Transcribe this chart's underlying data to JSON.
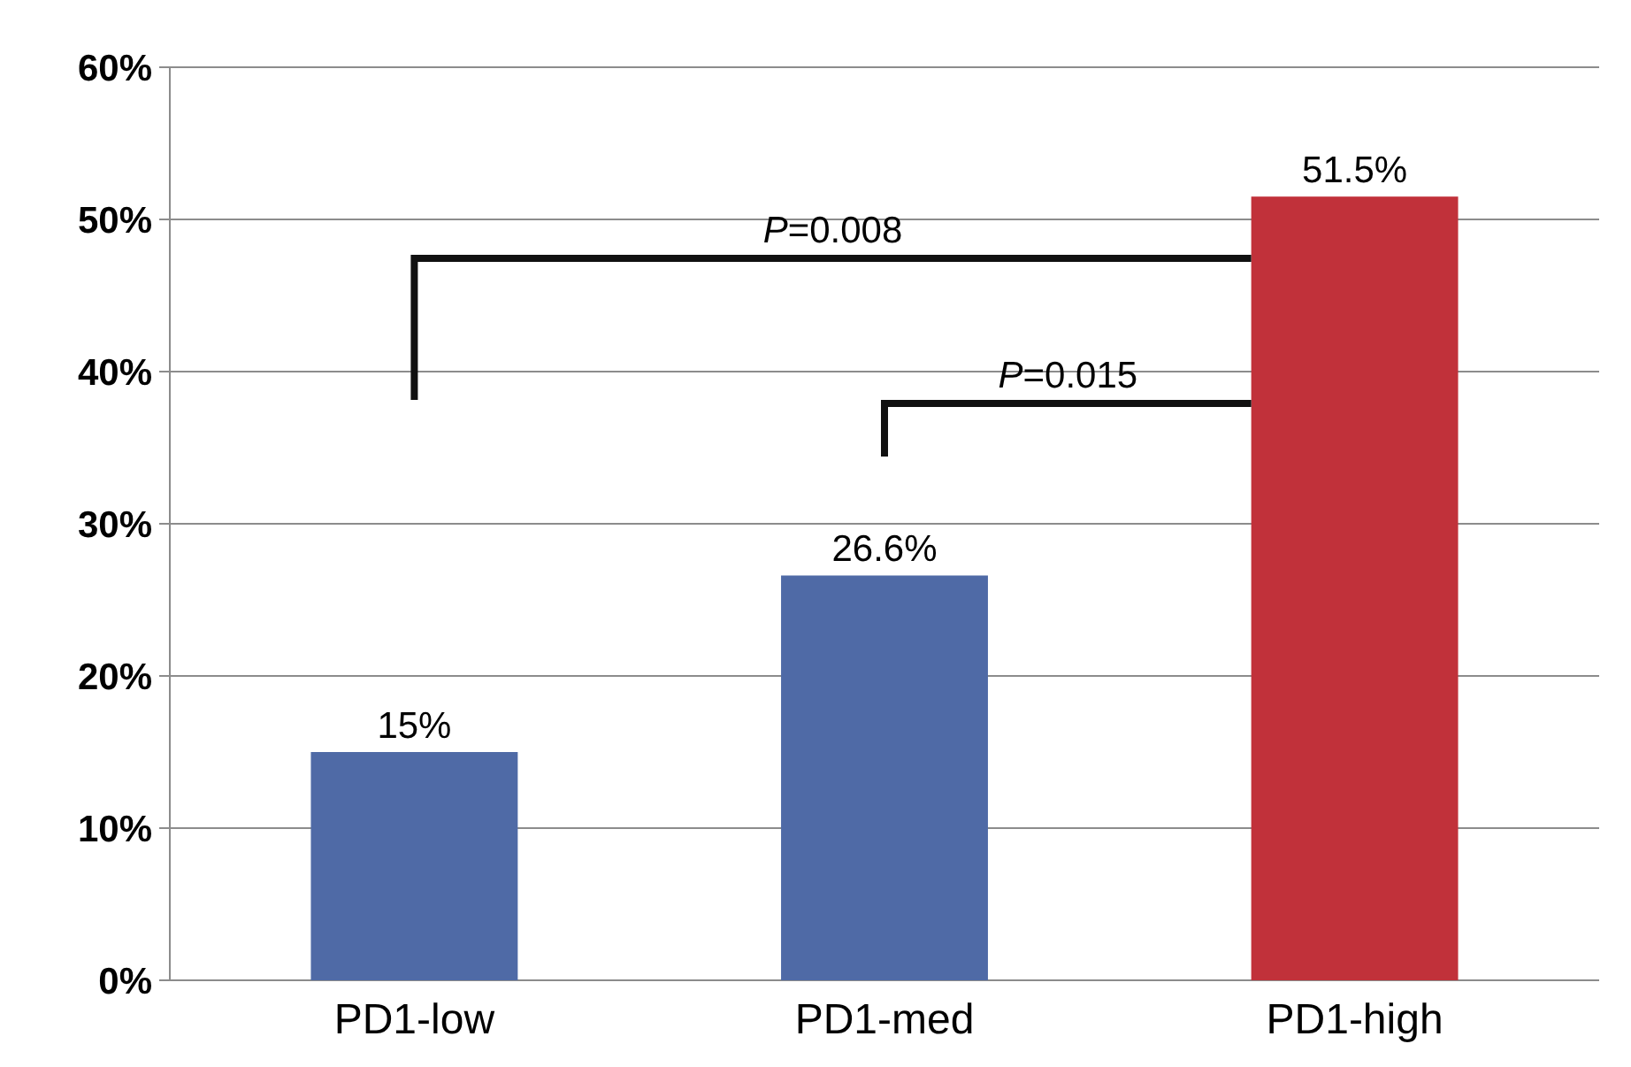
{
  "chart_data": {
    "type": "bar",
    "categories": [
      "PD1-low",
      "PD1-med",
      "PD1-high"
    ],
    "values": [
      15,
      26.6,
      51.5
    ],
    "colors": [
      "#4f6aa6",
      "#4f6aa6",
      "#c1313a"
    ],
    "value_labels": [
      "15%",
      "26.6%",
      "51.5%"
    ],
    "ylim": [
      0,
      60
    ],
    "yticks": [
      {
        "value": 0,
        "label": "0%"
      },
      {
        "value": 10,
        "label": "10%"
      },
      {
        "value": 20,
        "label": "20%"
      },
      {
        "value": 30,
        "label": "30%"
      },
      {
        "value": 40,
        "label": "40%"
      },
      {
        "value": 50,
        "label": "50%"
      },
      {
        "value": 60,
        "label": "60%"
      }
    ],
    "grid": "y",
    "annotations": [
      "P=0.008",
      "P=0.015"
    ]
  }
}
